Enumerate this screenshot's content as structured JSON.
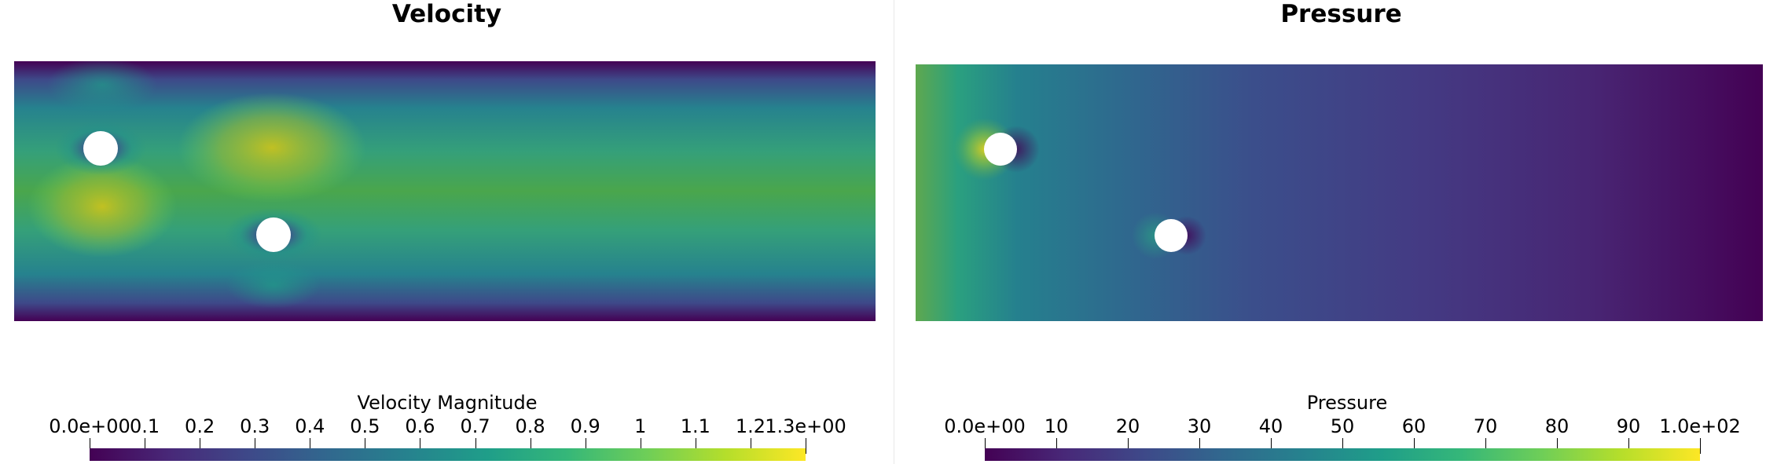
{
  "panels": {
    "velocity": {
      "title": "Velocity",
      "colorbar": {
        "title": "Velocity Magnitude",
        "ticks": [
          "0.0e+00",
          "0.1",
          "0.2",
          "0.3",
          "0.4",
          "0.5",
          "0.6",
          "0.7",
          "0.8",
          "0.9",
          "1",
          "1.1",
          "1.2",
          "1.3e+00"
        ],
        "colormap": "viridis",
        "range": [
          0,
          1.3
        ]
      }
    },
    "pressure": {
      "title": "Pressure",
      "colorbar": {
        "title": "Pressure",
        "ticks": [
          "0.0e+00",
          "10",
          "20",
          "30",
          "40",
          "50",
          "60",
          "70",
          "80",
          "90",
          "1.0e+02"
        ],
        "colormap": "viridis",
        "range": [
          0,
          100
        ]
      }
    }
  },
  "colors": {
    "viridis": [
      "#440154",
      "#482878",
      "#3e4989",
      "#31688e",
      "#26828e",
      "#1f9e89",
      "#35b779",
      "#6ece58",
      "#b5de2b",
      "#fde725"
    ],
    "obstacle": "#ffffff"
  }
}
